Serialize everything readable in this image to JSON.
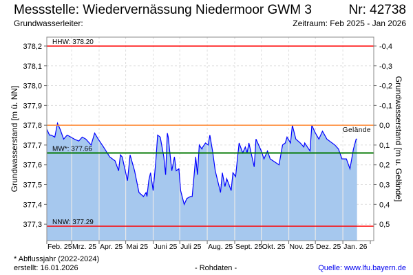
{
  "header": {
    "title": "Messstelle: Wiedervernässung Niedermoor GWM 3",
    "number": "Nr: 42738",
    "aquifer": "Grundwasserleiter:",
    "period": "Zeitraum: Feb 2025 - Jan 2026"
  },
  "footer": {
    "note": "* Abflussjahr (2022-2024)",
    "created": "erstellt:  16.01.2026",
    "rawdata": "- Rohdaten -",
    "source": "Quelle: www.lfu.bayern.de"
  },
  "colors": {
    "fill": "#a6c8ee",
    "line": "#0000ff",
    "hhw": "#ff0000",
    "nnw": "#ff0000",
    "mw": "#007700",
    "ground": "#ff8833"
  },
  "chart_data": {
    "type": "area",
    "ylabel": "Grundwasserstand [m ü. NN]",
    "ylabel_right": "Grundwasserstand [m u. Gelände]",
    "ylim": [
      377.217,
      378.245
    ],
    "yticks": [
      "378,2",
      "378,1",
      "378,0",
      "377,9",
      "377,8",
      "377,7",
      "377,6",
      "377,5",
      "377,4",
      "377,3"
    ],
    "ytick_values": [
      378.2,
      378.1,
      378.0,
      377.9,
      377.8,
      377.7,
      377.6,
      377.5,
      377.4,
      377.3
    ],
    "yticks_right": [
      "-0,4",
      "-0,3",
      "-0,2",
      "-0,1",
      "0,0",
      "0,1",
      "0,2",
      "0,3",
      "0,4",
      "0,5"
    ],
    "x_unit": "days since 01.02.2025",
    "xlim": [
      0,
      368
    ],
    "months": [
      "Feb. 25",
      "Mrz. 25",
      "Apr. 25",
      "Mai 25",
      "Juni 25",
      "Juli 25",
      "Aug. 25",
      "Sept. 25",
      "Okt. 25",
      "Nov. 25",
      "Dez. 25",
      "Jan. 26"
    ],
    "month_starts": [
      0,
      28,
      59,
      89,
      120,
      150,
      181,
      212,
      242,
      273,
      303,
      334
    ],
    "reference_lines": [
      {
        "name": "hhw",
        "label": "HHW: 378.20",
        "value": 378.2
      },
      {
        "name": "ground",
        "label": "Gelände",
        "value": 377.8
      },
      {
        "name": "mw",
        "label": "MW*: 377.66",
        "value": 377.66
      },
      {
        "name": "nnw",
        "label": "NNW: 377.29",
        "value": 377.29
      }
    ],
    "series": [
      {
        "name": "Grundwasserstand",
        "x": [
          0,
          3,
          5,
          9,
          12,
          15,
          19,
          23,
          27,
          31,
          36,
          40,
          44,
          50,
          54,
          58,
          64,
          71,
          77,
          81,
          83,
          85,
          91,
          94,
          99,
          104,
          109,
          112,
          113,
          115,
          117,
          120,
          123,
          125,
          128,
          132,
          134,
          136,
          137,
          141,
          144,
          146,
          149,
          151,
          155,
          158,
          162,
          164,
          166,
          168,
          170,
          172,
          175,
          176,
          179,
          182,
          184,
          187,
          190,
          196,
          198,
          201,
          203,
          208,
          210,
          213,
          215,
          217,
          221,
          224,
          226,
          228,
          234,
          236,
          242,
          245,
          249,
          252,
          262,
          266,
          269,
          271,
          275,
          277,
          281,
          286,
          290,
          291,
          294,
          297,
          299,
          303,
          307,
          311,
          316,
          325,
          329,
          333,
          338,
          342,
          346,
          349,
          350
        ],
        "y": [
          377.78,
          377.75,
          377.75,
          377.74,
          377.81,
          377.78,
          377.73,
          377.75,
          377.74,
          377.73,
          377.72,
          377.74,
          377.73,
          377.7,
          377.76,
          377.73,
          377.69,
          377.64,
          377.62,
          377.57,
          377.65,
          377.64,
          377.52,
          377.65,
          377.57,
          377.46,
          377.44,
          377.46,
          377.44,
          377.52,
          377.56,
          377.47,
          377.62,
          377.75,
          377.74,
          377.64,
          377.55,
          377.76,
          377.74,
          377.57,
          377.64,
          377.57,
          377.58,
          377.47,
          377.4,
          377.43,
          377.44,
          377.44,
          377.54,
          377.64,
          377.55,
          377.7,
          377.68,
          377.69,
          377.71,
          377.7,
          377.75,
          377.67,
          377.57,
          377.46,
          377.56,
          377.49,
          377.53,
          377.47,
          377.56,
          377.54,
          377.63,
          377.71,
          377.66,
          377.69,
          377.66,
          377.71,
          377.59,
          377.73,
          377.67,
          377.63,
          377.67,
          377.63,
          377.6,
          377.7,
          377.71,
          377.74,
          377.71,
          377.8,
          377.73,
          377.71,
          377.69,
          377.71,
          377.69,
          377.67,
          377.8,
          377.76,
          377.73,
          377.77,
          377.73,
          377.7,
          377.68,
          377.63,
          377.63,
          377.58,
          377.68,
          377.73,
          377.73
        ]
      }
    ]
  }
}
